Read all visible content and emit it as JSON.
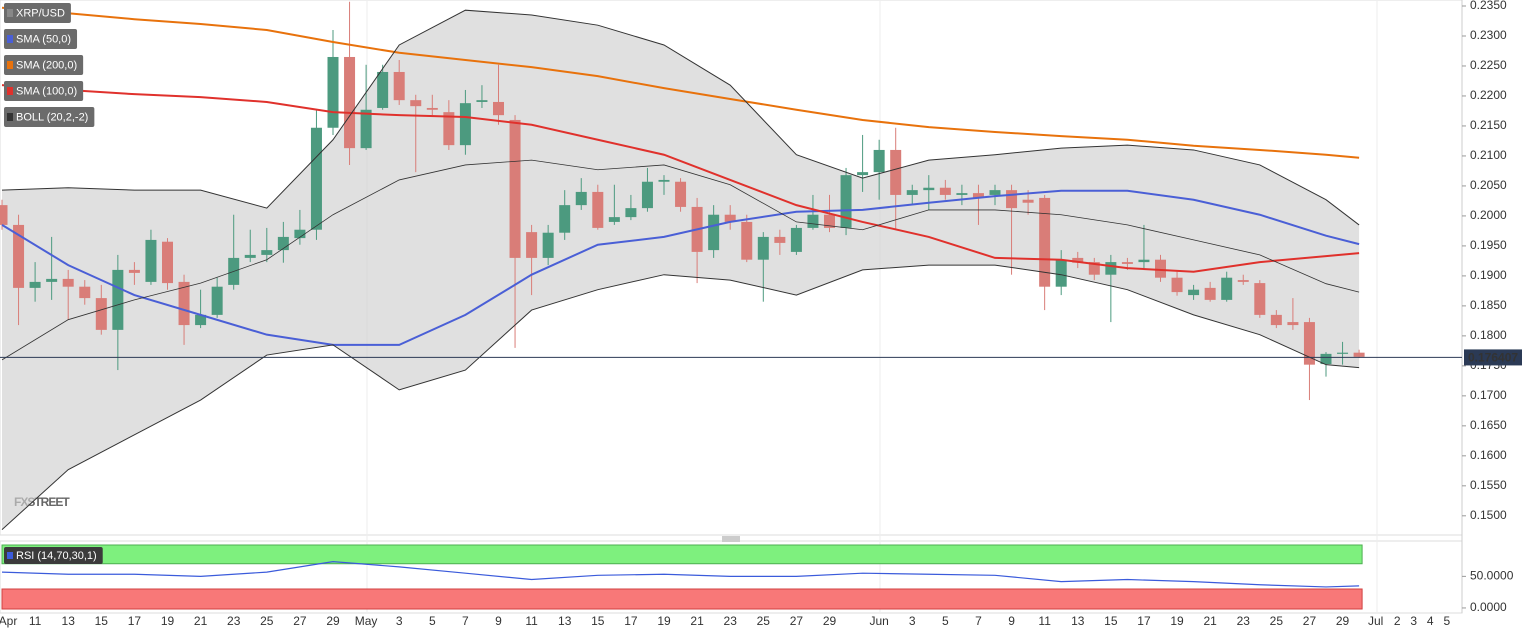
{
  "chart_data": [
    {
      "type": "candlestick",
      "name": "XRP/USD",
      "up_color": "#4c9a7f",
      "down_color": "#d97d78",
      "ylim": [
        0.1468,
        0.236
      ],
      "yticks": [
        {
          "value": 0.235,
          "label": "0.2350"
        },
        {
          "value": 0.23,
          "label": "0.2300"
        },
        {
          "value": 0.225,
          "label": "0.2250"
        },
        {
          "value": 0.22,
          "label": "0.2200"
        },
        {
          "value": 0.215,
          "label": "0.2150"
        },
        {
          "value": 0.21,
          "label": "0.2100"
        },
        {
          "value": 0.205,
          "label": "0.2050"
        },
        {
          "value": 0.2,
          "label": "0.2000"
        },
        {
          "value": 0.195,
          "label": "0.1950"
        },
        {
          "value": 0.19,
          "label": "0.1900"
        },
        {
          "value": 0.185,
          "label": "0.1850"
        },
        {
          "value": 0.18,
          "label": "0.1800"
        },
        {
          "value": 0.175,
          "label": "0.1750"
        },
        {
          "value": 0.17,
          "label": "0.1700"
        },
        {
          "value": 0.165,
          "label": "0.1650"
        },
        {
          "value": 0.16,
          "label": "0.1600"
        },
        {
          "value": 0.155,
          "label": "0.1550"
        },
        {
          "value": 0.15,
          "label": "0.1500"
        }
      ],
      "last_price": 0.176407,
      "watermark": "FXSTREET",
      "xlabels": [
        "Apr",
        "11",
        "13",
        "15",
        "17",
        "19",
        "21",
        "23",
        "25",
        "27",
        "29",
        "May",
        "3",
        "5",
        "7",
        "9",
        "11",
        "13",
        "15",
        "17",
        "19",
        "21",
        "23",
        "25",
        "27",
        "29",
        "Jun",
        "3",
        "5",
        "7",
        "9",
        "11",
        "13",
        "15",
        "17",
        "19",
        "21",
        "23",
        "25",
        "27",
        "29",
        "Jul",
        "2",
        "3",
        "4",
        "5"
      ],
      "ohlc": [
        [
          0.2018,
          0.2027,
          0.1977,
          0.1985
        ],
        [
          0.1985,
          0.2002,
          0.1818,
          0.188
        ],
        [
          0.188,
          0.1923,
          0.1857,
          0.189
        ],
        [
          0.189,
          0.1965,
          0.186,
          0.1895
        ],
        [
          0.1895,
          0.191,
          0.1827,
          0.1882
        ],
        [
          0.1882,
          0.1893,
          0.1852,
          0.1863
        ],
        [
          0.1863,
          0.1885,
          0.1802,
          0.181
        ],
        [
          0.181,
          0.1935,
          0.1743,
          0.191
        ],
        [
          0.191,
          0.1923,
          0.1885,
          0.1905
        ],
        [
          0.189,
          0.1977,
          0.1885,
          0.196
        ],
        [
          0.1957,
          0.1963,
          0.1877,
          0.1888
        ],
        [
          0.189,
          0.1902,
          0.1785,
          0.1818
        ],
        [
          0.1818,
          0.1877,
          0.1813,
          0.1835
        ],
        [
          0.1835,
          0.1897,
          0.183,
          0.1882
        ],
        [
          0.1885,
          0.2002,
          0.1877,
          0.193
        ],
        [
          0.193,
          0.1977,
          0.1923,
          0.1935
        ],
        [
          0.1935,
          0.198,
          0.1923,
          0.1943
        ],
        [
          0.1943,
          0.199,
          0.1922,
          0.1965
        ],
        [
          0.1963,
          0.201,
          0.1952,
          0.1977
        ],
        [
          0.1977,
          0.2177,
          0.196,
          0.2147
        ],
        [
          0.2147,
          0.231,
          0.2135,
          0.2265
        ],
        [
          0.2265,
          0.2357,
          0.2085,
          0.2113
        ],
        [
          0.2113,
          0.2252,
          0.211,
          0.2177
        ],
        [
          0.218,
          0.2252,
          0.2177,
          0.224
        ],
        [
          0.224,
          0.226,
          0.2185,
          0.2193
        ],
        [
          0.2193,
          0.2202,
          0.2073,
          0.2183
        ],
        [
          0.218,
          0.2202,
          0.2168,
          0.2177
        ],
        [
          0.2173,
          0.2193,
          0.211,
          0.2118
        ],
        [
          0.2118,
          0.221,
          0.2102,
          0.2188
        ],
        [
          0.219,
          0.2218,
          0.218,
          0.2193
        ],
        [
          0.219,
          0.2252,
          0.2152,
          0.2168
        ],
        [
          0.216,
          0.2168,
          0.178,
          0.193
        ],
        [
          0.1973,
          0.1985,
          0.1868,
          0.193
        ],
        [
          0.193,
          0.1985,
          0.1918,
          0.1972
        ],
        [
          0.1972,
          0.2043,
          0.196,
          0.2018
        ],
        [
          0.2018,
          0.2063,
          0.201,
          0.204
        ],
        [
          0.204,
          0.2052,
          0.1977,
          0.198
        ],
        [
          0.199,
          0.2052,
          0.1985,
          0.1998
        ],
        [
          0.1998,
          0.2035,
          0.1993,
          0.2013
        ],
        [
          0.2013,
          0.208,
          0.2007,
          0.2057
        ],
        [
          0.2057,
          0.2068,
          0.2035,
          0.206
        ],
        [
          0.2057,
          0.2063,
          0.2007,
          0.2015
        ],
        [
          0.2015,
          0.203,
          0.1888,
          0.194
        ],
        [
          0.1943,
          0.2018,
          0.193,
          0.2002
        ],
        [
          0.2002,
          0.2018,
          0.1977,
          0.199
        ],
        [
          0.199,
          0.2002,
          0.1923,
          0.1927
        ],
        [
          0.1927,
          0.1973,
          0.1857,
          0.1965
        ],
        [
          0.1965,
          0.1977,
          0.1935,
          0.1955
        ],
        [
          0.194,
          0.1985,
          0.1935,
          0.198
        ],
        [
          0.198,
          0.2035,
          0.1977,
          0.2002
        ],
        [
          0.2002,
          0.2035,
          0.1973,
          0.198
        ],
        [
          0.198,
          0.208,
          0.1968,
          0.2068
        ],
        [
          0.2068,
          0.2135,
          0.204,
          0.2073
        ],
        [
          0.2073,
          0.2127,
          0.2027,
          0.211
        ],
        [
          0.211,
          0.2147,
          0.1977,
          0.2035
        ],
        [
          0.2035,
          0.2052,
          0.2018,
          0.2043
        ],
        [
          0.2043,
          0.2068,
          0.201,
          0.2047
        ],
        [
          0.2047,
          0.206,
          0.2027,
          0.2035
        ],
        [
          0.2035,
          0.2052,
          0.2018,
          0.2038
        ],
        [
          0.2038,
          0.2052,
          0.1985,
          0.203
        ],
        [
          0.2035,
          0.2052,
          0.2018,
          0.2043
        ],
        [
          0.2043,
          0.2052,
          0.1902,
          0.2013
        ],
        [
          0.2027,
          0.2043,
          0.2002,
          0.2022
        ],
        [
          0.203,
          0.2035,
          0.1843,
          0.1882
        ],
        [
          0.1882,
          0.1943,
          0.1868,
          0.1927
        ],
        [
          0.193,
          0.194,
          0.1913,
          0.1922
        ],
        [
          0.1923,
          0.193,
          0.1893,
          0.1902
        ],
        [
          0.1902,
          0.1935,
          0.1823,
          0.1923
        ],
        [
          0.1923,
          0.193,
          0.191,
          0.192
        ],
        [
          0.1923,
          0.1985,
          0.1913,
          0.1927
        ],
        [
          0.1927,
          0.1935,
          0.189,
          0.1897
        ],
        [
          0.1897,
          0.1907,
          0.1867,
          0.1873
        ],
        [
          0.1868,
          0.1885,
          0.186,
          0.1877
        ],
        [
          0.188,
          0.189,
          0.1857,
          0.186
        ],
        [
          0.186,
          0.1907,
          0.1857,
          0.1897
        ],
        [
          0.1893,
          0.1902,
          0.1885,
          0.189
        ],
        [
          0.1888,
          0.1893,
          0.183,
          0.1835
        ],
        [
          0.1835,
          0.1843,
          0.1813,
          0.1818
        ],
        [
          0.1823,
          0.1863,
          0.181,
          0.1818
        ],
        [
          0.1823,
          0.183,
          0.1693,
          0.1752
        ],
        [
          0.1753,
          0.1773,
          0.1732,
          0.177
        ],
        [
          0.177,
          0.179,
          0.1752,
          0.1772
        ],
        [
          0.1772,
          0.1777,
          0.1763,
          0.1765
        ]
      ],
      "x": [
        0,
        4,
        8,
        12,
        16,
        20,
        24,
        28,
        32,
        36,
        40,
        44,
        48,
        52,
        56,
        60,
        64,
        68,
        72,
        76,
        80,
        82
      ],
      "series": [
        {
          "name": "SMA (50,0)",
          "color": "#4a5fd6",
          "values": [
            0.1985,
            0.1918,
            0.1868,
            0.1835,
            0.1802,
            0.1785,
            0.1785,
            0.1835,
            0.1902,
            0.1952,
            0.1965,
            0.199,
            0.2007,
            0.201,
            0.2022,
            0.2033,
            0.2042,
            0.2042,
            0.2027,
            0.2002,
            0.1967,
            0.1953
          ]
        },
        {
          "name": "SMA (200,0)",
          "color": "#e8720c",
          "values": [
            0.2347,
            0.2338,
            0.2328,
            0.232,
            0.231,
            0.229,
            0.2272,
            0.226,
            0.2248,
            0.2233,
            0.2213,
            0.2195,
            0.2177,
            0.216,
            0.2148,
            0.214,
            0.2133,
            0.2127,
            0.2117,
            0.211,
            0.2102,
            0.2097
          ]
        },
        {
          "name": "SMA (100,0)",
          "color": "#e0312c",
          "values": [
            0.2218,
            0.221,
            0.2203,
            0.2198,
            0.219,
            0.2173,
            0.2168,
            0.2165,
            0.2152,
            0.2127,
            0.2102,
            0.206,
            0.2018,
            0.199,
            0.1965,
            0.193,
            0.1927,
            0.1913,
            0.1907,
            0.1923,
            0.1933,
            0.1938
          ]
        },
        {
          "name": "BOLL (20,2,-2)",
          "color": "#333333",
          "upper": [
            0.2043,
            0.2047,
            0.2043,
            0.2043,
            0.2013,
            0.2127,
            0.2285,
            0.2343,
            0.2335,
            0.2318,
            0.2285,
            0.2218,
            0.2102,
            0.2063,
            0.2093,
            0.2102,
            0.2113,
            0.2118,
            0.211,
            0.2085,
            0.2027,
            0.1985
          ],
          "middle": [
            0.176,
            0.1827,
            0.186,
            0.1888,
            0.1927,
            0.2002,
            0.206,
            0.2085,
            0.2093,
            0.2077,
            0.2085,
            0.2052,
            0.199,
            0.1977,
            0.201,
            0.201,
            0.2002,
            0.1985,
            0.196,
            0.1935,
            0.1887,
            0.1873
          ],
          "lower": [
            0.1477,
            0.1577,
            0.1635,
            0.1693,
            0.1768,
            0.1785,
            0.171,
            0.1743,
            0.1843,
            0.1877,
            0.1902,
            0.1893,
            0.1868,
            0.191,
            0.1918,
            0.1918,
            0.1902,
            0.1877,
            0.1835,
            0.1802,
            0.1752,
            0.1747
          ]
        }
      ]
    },
    {
      "type": "rsi",
      "name": "RSI (14,70,30,1)",
      "color": "#3b5bdb",
      "ylim": [
        -8,
        106
      ],
      "overbought": 70,
      "oversold": 30,
      "yticks": [
        {
          "value": 50,
          "label": "50.0000"
        },
        {
          "value": 0,
          "label": "0.0000"
        }
      ],
      "x": [
        0,
        4,
        8,
        12,
        16,
        20,
        24,
        28,
        32,
        36,
        40,
        44,
        48,
        52,
        56,
        60,
        64,
        68,
        72,
        76,
        80,
        82
      ],
      "values": [
        56.7,
        53.3,
        53.3,
        50,
        56.7,
        73.3,
        65,
        55,
        45,
        51.7,
        53.3,
        50,
        50,
        55,
        53.3,
        51.7,
        41.7,
        45,
        41.7,
        36.7,
        33.3,
        35
      ]
    }
  ]
}
